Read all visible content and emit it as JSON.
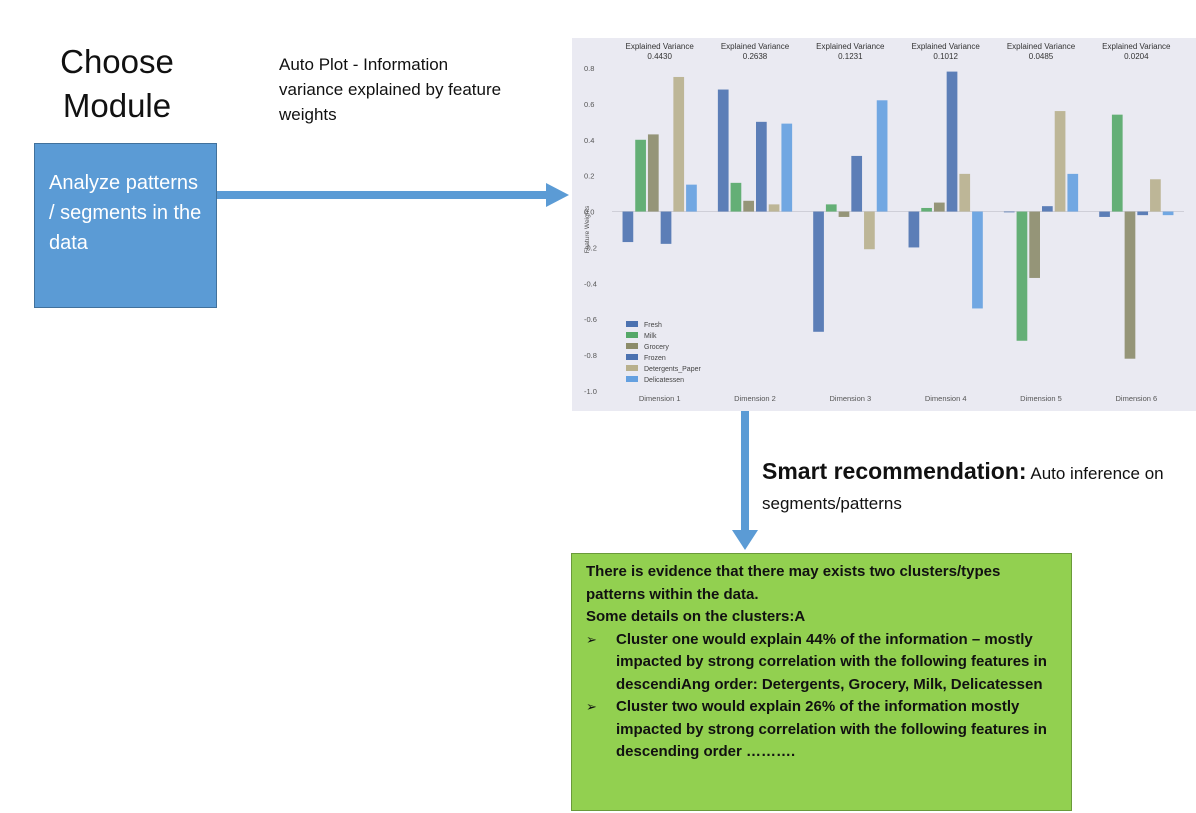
{
  "choose_module": {
    "title": "Choose Module",
    "box_text": "Analyze patterns / segments in the data"
  },
  "plot_caption": "Auto Plot - Information variance explained by feature weights",
  "smart_recommendation": {
    "heading": "Smart recommendation:",
    "text": "Auto inference on segments/patterns"
  },
  "recommendation_box": {
    "lines": [
      "There is evidence that there may exists two clusters/types patterns within the data.",
      "Some details on the clusters:A"
    ],
    "bullets": [
      "Cluster one would explain 44% of the information – mostly impacted by strong correlation with the following features in descendiAng order: Detergents, Grocery, Milk, Delicatessen",
      "Cluster two would explain 26% of the information mostly impacted by strong correlation with the following features in descending order ………."
    ],
    "bullet_glyph": "➢"
  },
  "colors": {
    "module_box": "#5b9bd5",
    "arrow": "#5b9bd5",
    "recommendation_box": "#92d050",
    "plot_background": "#eaeaf2"
  },
  "chart_data": {
    "type": "bar",
    "ylabel": "Feature Weights",
    "ylim": [
      -1.0,
      0.8
    ],
    "yticks": [
      "0.8",
      "0.6",
      "0.4",
      "0.2",
      "0.0",
      "-0.2",
      "-0.4",
      "-0.6",
      "-0.8",
      "-1.0"
    ],
    "categories": [
      "Dimension 1",
      "Dimension 2",
      "Dimension 3",
      "Dimension 4",
      "Dimension 5",
      "Dimension 6"
    ],
    "variance_labels": [
      [
        "Explained Variance",
        "0.4430"
      ],
      [
        "Explained Variance",
        "0.2638"
      ],
      [
        "Explained Variance",
        "0.1231"
      ],
      [
        "Explained Variance",
        "0.1012"
      ],
      [
        "Explained Variance",
        "0.0485"
      ],
      [
        "Explained Variance",
        "0.0204"
      ]
    ],
    "legend_position": "bottom-left",
    "series": [
      {
        "name": "Fresh",
        "color": "#4c72b0",
        "values": [
          -0.17,
          0.68,
          -0.67,
          -0.2,
          0.0,
          -0.03
        ]
      },
      {
        "name": "Milk",
        "color": "#55a868",
        "values": [
          0.4,
          0.16,
          0.04,
          0.02,
          -0.72,
          0.54
        ]
      },
      {
        "name": "Grocery",
        "color": "#8c8c6a",
        "values": [
          0.43,
          0.06,
          -0.03,
          0.05,
          -0.37,
          -0.82
        ]
      },
      {
        "name": "Frozen",
        "color": "#4c72b0",
        "values": [
          -0.18,
          0.5,
          0.31,
          0.78,
          0.03,
          -0.02
        ]
      },
      {
        "name": "Detergents_Paper",
        "color": "#b8b08d",
        "values": [
          0.75,
          0.04,
          -0.21,
          0.21,
          0.56,
          0.18
        ]
      },
      {
        "name": "Delicatessen",
        "color": "#64a0e0",
        "values": [
          0.15,
          0.49,
          0.62,
          -0.54,
          0.21,
          -0.02
        ]
      }
    ]
  }
}
